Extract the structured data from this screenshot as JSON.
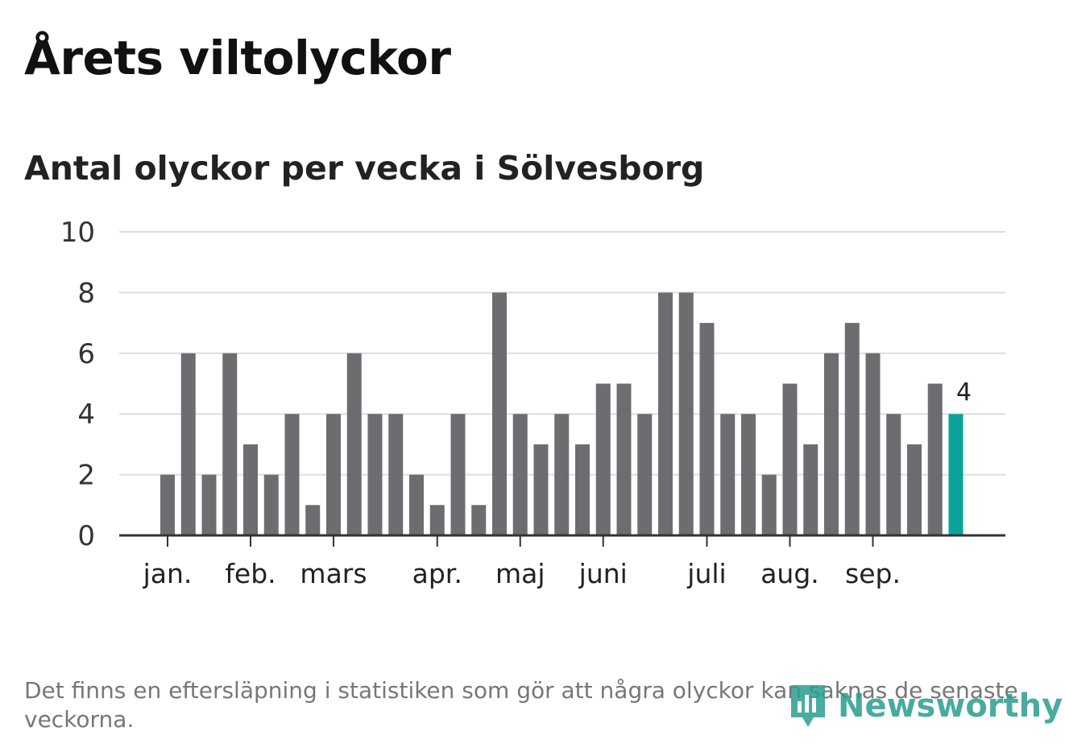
{
  "title": "Årets viltolyckor",
  "subtitle": "Antal olyckor per vecka i Sölvesborg",
  "footnote": "Det finns en eftersläpning i statistiken som gör att några olyckor kan saknas de senaste veckorna.",
  "logo": {
    "text": "Newsworthy",
    "icon": "newsworthy-bar-chart-icon"
  },
  "colors": {
    "bar": "#6d6c71",
    "highlight": "#0aa39a",
    "grid": "#dddddd",
    "axis": "#333333",
    "logo": "#2a9d8f"
  },
  "chart_data": {
    "type": "bar",
    "title": "Antal olyckor per vecka i Sölvesborg",
    "xlabel": "",
    "ylabel": "",
    "ylim": [
      0,
      10
    ],
    "yticks": [
      0,
      2,
      4,
      6,
      8,
      10
    ],
    "grid": true,
    "weeks": [
      1,
      2,
      3,
      4,
      5,
      6,
      7,
      8,
      9,
      10,
      11,
      12,
      13,
      14,
      15,
      16,
      17,
      18,
      19,
      20,
      21,
      22,
      23,
      24,
      25,
      26,
      27,
      28,
      29,
      30,
      31,
      32,
      33,
      34,
      35,
      36,
      37,
      38,
      39
    ],
    "values": [
      2,
      6,
      2,
      6,
      3,
      2,
      4,
      1,
      4,
      6,
      4,
      4,
      2,
      1,
      4,
      1,
      8,
      4,
      3,
      4,
      3,
      5,
      5,
      4,
      8,
      8,
      7,
      4,
      4,
      2,
      5,
      3,
      6,
      7,
      6,
      4,
      3,
      5,
      4
    ],
    "highlight_index": 38,
    "highlight_label": "4",
    "month_ticks": [
      {
        "label": "jan.",
        "bar_index": 0
      },
      {
        "label": "feb.",
        "bar_index": 4
      },
      {
        "label": "mars",
        "bar_index": 8
      },
      {
        "label": "apr.",
        "bar_index": 13
      },
      {
        "label": "maj",
        "bar_index": 17
      },
      {
        "label": "juni",
        "bar_index": 21
      },
      {
        "label": "juli",
        "bar_index": 26
      },
      {
        "label": "aug.",
        "bar_index": 30
      },
      {
        "label": "sep.",
        "bar_index": 34
      }
    ]
  }
}
